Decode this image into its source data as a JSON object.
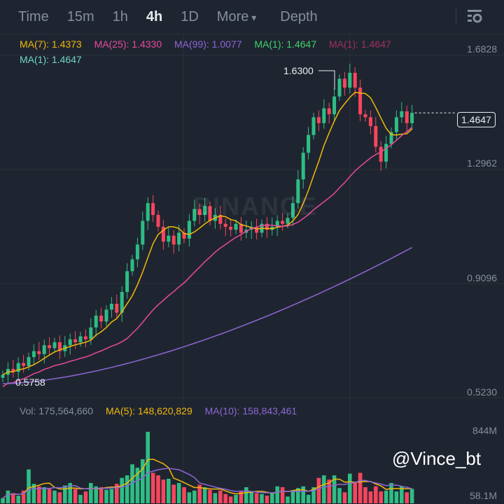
{
  "tabs": [
    {
      "label": "Time"
    },
    {
      "label": "15m"
    },
    {
      "label": "1h"
    },
    {
      "label": "4h",
      "active": true
    },
    {
      "label": "1D"
    },
    {
      "label": "More"
    },
    {
      "label": "Depth"
    }
  ],
  "legend": {
    "ma7": "MA(7): 1.4373",
    "ma25": "MA(25): 1.4330",
    "ma99": "MA(99): 1.0077",
    "ma1a": "MA(1): 1.4647",
    "ma1b": "MA(1): 1.4647",
    "ma1c": "MA(1): 1.4647"
  },
  "vol_legend": {
    "vol": "Vol: 175,564,660",
    "ma5": "MA(5): 148,620,829",
    "ma10": "MA(10): 158,843,461"
  },
  "price_axis": [
    "1.6828",
    "1.2962",
    "0.9096",
    "0.5230"
  ],
  "vol_axis": [
    "844M",
    "58.1M"
  ],
  "current_price": "1.4647",
  "high_label": "1.6300",
  "low_label": "0.5758",
  "watermark": "BINANCE",
  "handle": "@Vince_bt",
  "colors": {
    "up": "#2ebd85",
    "down": "#f6465d",
    "ma7": "#f0b90b",
    "ma25": "#e8499e",
    "ma99": "#8c67d6",
    "bg": "#1f2530"
  },
  "chart_data": {
    "type": "candlestick",
    "interval": "4h",
    "ylim": [
      0.523,
      1.6828
    ],
    "closes": [
      0.58,
      0.6,
      0.59,
      0.62,
      0.61,
      0.64,
      0.66,
      0.65,
      0.68,
      0.67,
      0.69,
      0.66,
      0.68,
      0.7,
      0.69,
      0.71,
      0.7,
      0.74,
      0.78,
      0.76,
      0.8,
      0.82,
      0.79,
      0.86,
      0.93,
      0.97,
      1.02,
      1.1,
      1.16,
      1.12,
      1.08,
      1.03,
      1.05,
      1.02,
      1.06,
      1.04,
      1.1,
      1.14,
      1.12,
      1.15,
      1.1,
      1.12,
      1.09,
      1.08,
      1.07,
      1.09,
      1.06,
      1.07,
      1.08,
      1.06,
      1.09,
      1.07,
      1.08,
      1.1,
      1.09,
      1.11,
      1.16,
      1.24,
      1.33,
      1.39,
      1.45,
      1.43,
      1.48,
      1.46,
      1.52,
      1.58,
      1.55,
      1.6,
      1.55,
      1.46,
      1.45,
      1.42,
      1.35,
      1.3,
      1.36,
      1.4,
      1.45,
      1.47,
      1.43,
      1.4647
    ],
    "volumes_m": [
      60,
      150,
      120,
      90,
      150,
      400,
      230,
      200,
      190,
      170,
      150,
      130,
      210,
      240,
      170,
      100,
      140,
      240,
      200,
      190,
      160,
      170,
      230,
      300,
      330,
      460,
      420,
      520,
      844,
      360,
      330,
      280,
      290,
      220,
      240,
      190,
      130,
      150,
      220,
      190,
      160,
      120,
      150,
      110,
      80,
      100,
      150,
      190,
      140,
      120,
      110,
      90,
      130,
      200,
      190,
      80,
      150,
      180,
      200,
      100,
      190,
      300,
      330,
      280,
      330,
      180,
      130,
      350,
      250,
      360,
      190,
      140,
      200,
      140,
      150,
      240,
      140,
      200,
      130,
      170
    ]
  }
}
